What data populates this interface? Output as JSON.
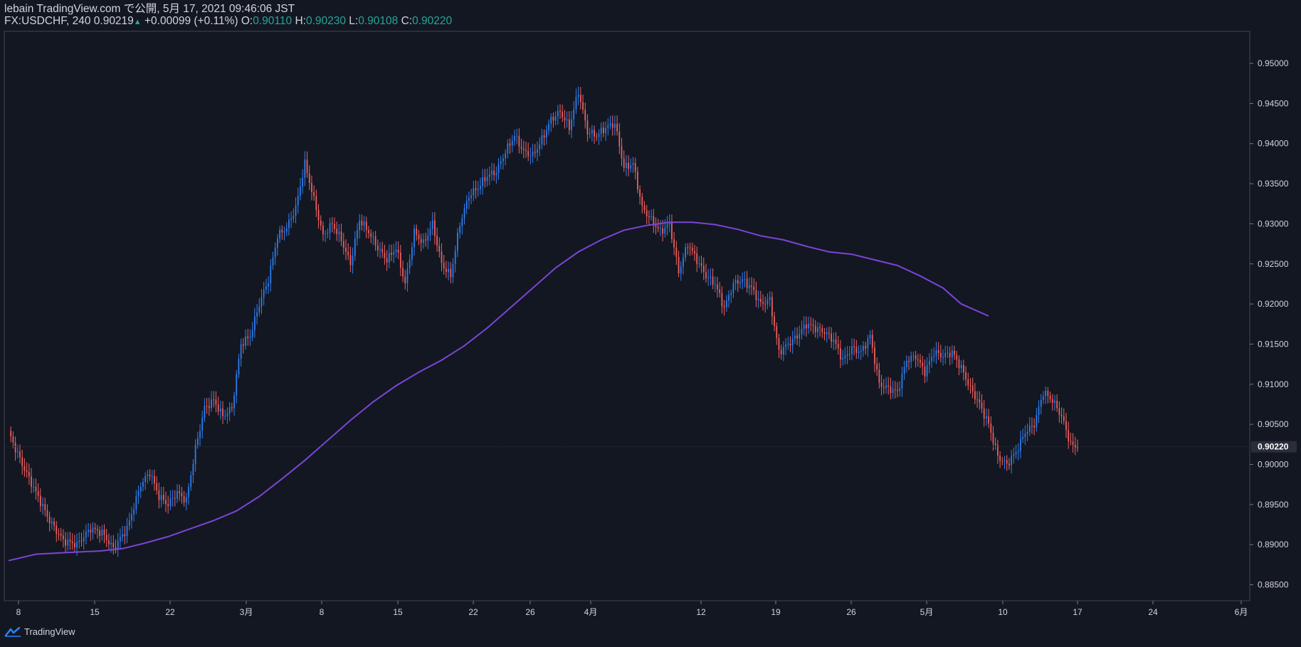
{
  "header": {
    "line1": "lebain TradingView.com で公開, 5月 17, 2021 09:46:06 JST",
    "symbol": "FX:USDCHF, 240",
    "last": "0.90219",
    "change": "+0.00099 (+0.11%)",
    "o_label": "O:",
    "o_val": "0.90110",
    "h_label": "H:",
    "h_val": "0.90230",
    "l_label": "L:",
    "l_val": "0.90108",
    "c_label": "C:",
    "c_val": "0.90220"
  },
  "brand": {
    "name": "TradingView",
    "icon": "tradingview-logo-icon"
  },
  "colors": {
    "background": "#131722",
    "up": "#2e7ff0",
    "down": "#f0605f",
    "ma": "#7b44d6",
    "text": "#d1d4dc",
    "teal": "#26a69a"
  },
  "chart_data": {
    "type": "candlestick",
    "instrument": "FX:USDCHF",
    "interval": "240",
    "ylim": [
      0.883,
      0.954
    ],
    "y_ticks": [
      "0.95000",
      "0.94500",
      "0.94000",
      "0.93500",
      "0.93000",
      "0.92500",
      "0.92000",
      "0.91500",
      "0.91000",
      "0.90500",
      "0.90000",
      "0.89500",
      "0.89000",
      "0.88500"
    ],
    "x_ticks": [
      "8",
      "15",
      "22",
      "3月",
      "8",
      "15",
      "22",
      "26",
      "4月",
      "12",
      "19",
      "26",
      "5月",
      "10",
      "17",
      "24",
      "6月"
    ],
    "last_price_label": "0.90220",
    "series": [
      {
        "name": "price",
        "anchors": [
          [
            0,
            0.904
          ],
          [
            6,
            0.9
          ],
          [
            12,
            0.8965
          ],
          [
            18,
            0.893
          ],
          [
            24,
            0.8905
          ],
          [
            30,
            0.89
          ],
          [
            36,
            0.892
          ],
          [
            41,
            0.8915
          ],
          [
            46,
            0.8895
          ],
          [
            52,
            0.892
          ],
          [
            58,
            0.8975
          ],
          [
            62,
            0.899
          ],
          [
            66,
            0.896
          ],
          [
            70,
            0.895
          ],
          [
            74,
            0.8965
          ],
          [
            78,
            0.8955
          ],
          [
            82,
            0.902
          ],
          [
            86,
            0.907
          ],
          [
            90,
            0.908
          ],
          [
            94,
            0.906
          ],
          [
            98,
            0.907
          ],
          [
            102,
            0.915
          ],
          [
            106,
            0.916
          ],
          [
            110,
            0.92
          ],
          [
            114,
            0.923
          ],
          [
            118,
            0.9285
          ],
          [
            122,
            0.9295
          ],
          [
            126,
            0.932
          ],
          [
            130,
            0.9375
          ],
          [
            134,
            0.933
          ],
          [
            138,
            0.9285
          ],
          [
            142,
            0.93
          ],
          [
            146,
            0.928
          ],
          [
            150,
            0.925
          ],
          [
            154,
            0.9305
          ],
          [
            158,
            0.929
          ],
          [
            162,
            0.927
          ],
          [
            166,
            0.9255
          ],
          [
            170,
            0.927
          ],
          [
            174,
            0.9225
          ],
          [
            178,
            0.929
          ],
          [
            182,
            0.9275
          ],
          [
            186,
            0.93
          ],
          [
            190,
            0.925
          ],
          [
            194,
            0.9235
          ],
          [
            198,
            0.93
          ],
          [
            202,
            0.9335
          ],
          [
            206,
            0.9345
          ],
          [
            210,
            0.936
          ],
          [
            214,
            0.9365
          ],
          [
            218,
            0.939
          ],
          [
            222,
            0.941
          ],
          [
            226,
            0.939
          ],
          [
            230,
            0.9385
          ],
          [
            234,
            0.9405
          ],
          [
            238,
            0.943
          ],
          [
            242,
            0.944
          ],
          [
            246,
            0.942
          ],
          [
            250,
            0.9465
          ],
          [
            254,
            0.9415
          ],
          [
            258,
            0.941
          ],
          [
            262,
            0.942
          ],
          [
            266,
            0.9425
          ],
          [
            270,
            0.937
          ],
          [
            274,
            0.9375
          ],
          [
            278,
            0.932
          ],
          [
            282,
            0.9305
          ],
          [
            286,
            0.929
          ],
          [
            290,
            0.93
          ],
          [
            294,
            0.924
          ],
          [
            298,
            0.9275
          ],
          [
            302,
            0.9255
          ],
          [
            306,
            0.9235
          ],
          [
            310,
            0.9225
          ],
          [
            314,
            0.9195
          ],
          [
            318,
            0.9225
          ],
          [
            322,
            0.923
          ],
          [
            326,
            0.922
          ],
          [
            330,
            0.92
          ],
          [
            334,
            0.9205
          ],
          [
            338,
            0.914
          ],
          [
            342,
            0.915
          ],
          [
            346,
            0.916
          ],
          [
            350,
            0.9175
          ],
          [
            354,
            0.917
          ],
          [
            358,
            0.9165
          ],
          [
            362,
            0.9155
          ],
          [
            366,
            0.913
          ],
          [
            370,
            0.9145
          ],
          [
            374,
            0.914
          ],
          [
            378,
            0.916
          ],
          [
            382,
            0.91
          ],
          [
            386,
            0.9095
          ],
          [
            390,
            0.909
          ],
          [
            394,
            0.913
          ],
          [
            398,
            0.9135
          ],
          [
            402,
            0.9115
          ],
          [
            406,
            0.914
          ],
          [
            410,
            0.9135
          ],
          [
            414,
            0.914
          ],
          [
            418,
            0.912
          ],
          [
            422,
            0.9095
          ],
          [
            426,
            0.9075
          ],
          [
            430,
            0.905
          ],
          [
            434,
            0.901
          ],
          [
            438,
            0.9
          ],
          [
            442,
            0.9015
          ],
          [
            446,
            0.904
          ],
          [
            450,
            0.905
          ],
          [
            454,
            0.909
          ],
          [
            458,
            0.908
          ],
          [
            462,
            0.906
          ],
          [
            466,
            0.9025
          ],
          [
            469,
            0.902
          ]
        ]
      },
      {
        "name": "moving-average",
        "points": [
          [
            0,
            0.888
          ],
          [
            12,
            0.8888
          ],
          [
            25,
            0.889
          ],
          [
            40,
            0.8892
          ],
          [
            50,
            0.8895
          ],
          [
            60,
            0.8902
          ],
          [
            70,
            0.891
          ],
          [
            80,
            0.892
          ],
          [
            90,
            0.893
          ],
          [
            100,
            0.8942
          ],
          [
            110,
            0.896
          ],
          [
            120,
            0.8982
          ],
          [
            130,
            0.9005
          ],
          [
            140,
            0.903
          ],
          [
            150,
            0.9055
          ],
          [
            160,
            0.9078
          ],
          [
            170,
            0.9098
          ],
          [
            180,
            0.9115
          ],
          [
            190,
            0.913
          ],
          [
            200,
            0.9148
          ],
          [
            210,
            0.917
          ],
          [
            220,
            0.9195
          ],
          [
            230,
            0.922
          ],
          [
            240,
            0.9245
          ],
          [
            250,
            0.9265
          ],
          [
            260,
            0.928
          ],
          [
            270,
            0.9292
          ],
          [
            280,
            0.9298
          ],
          [
            290,
            0.9302
          ],
          [
            300,
            0.9302
          ],
          [
            310,
            0.9299
          ],
          [
            320,
            0.9293
          ],
          [
            330,
            0.9285
          ],
          [
            340,
            0.928
          ],
          [
            350,
            0.9272
          ],
          [
            360,
            0.9265
          ],
          [
            370,
            0.9262
          ],
          [
            380,
            0.9255
          ],
          [
            390,
            0.9248
          ],
          [
            400,
            0.9235
          ],
          [
            410,
            0.922
          ],
          [
            418,
            0.92
          ],
          [
            430,
            0.9185
          ]
        ]
      }
    ]
  }
}
